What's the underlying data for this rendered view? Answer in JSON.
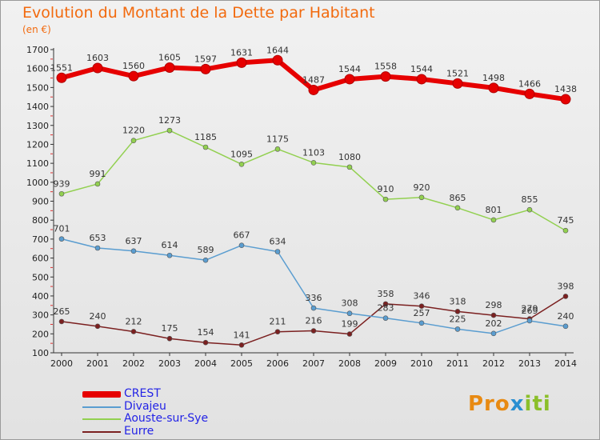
{
  "chart_data": {
    "type": "line",
    "title": "Evolution du Montant de la Dette par Habitant",
    "subtitle": "(en €)",
    "x": [
      "2000",
      "2001",
      "2002",
      "2003",
      "2004",
      "2005",
      "2006",
      "2007",
      "2008",
      "2009",
      "2010",
      "2011",
      "2012",
      "2013",
      "2014"
    ],
    "yticks": [
      100,
      200,
      300,
      400,
      500,
      600,
      700,
      800,
      900,
      1000,
      1100,
      1200,
      1300,
      1400,
      1500,
      1600,
      1700
    ],
    "ylim": [
      100,
      1700
    ],
    "grid": false,
    "legend_position": "bottom-left",
    "series": [
      {
        "name": "CREST",
        "color": "#e60000",
        "values": [
          1551,
          1603,
          1560,
          1605,
          1597,
          1631,
          1644,
          1487,
          1544,
          1558,
          1544,
          1521,
          1498,
          1466,
          1438
        ]
      },
      {
        "name": "Divajeu",
        "color": "#5a9dd0",
        "values": [
          701,
          653,
          637,
          614,
          589,
          667,
          634,
          336,
          308,
          283,
          257,
          225,
          202,
          269,
          240
        ]
      },
      {
        "name": "Aouste-sur-Sye",
        "color": "#92d050",
        "values": [
          939,
          991,
          1220,
          1273,
          1185,
          1095,
          1175,
          1103,
          1080,
          910,
          920,
          865,
          801,
          855,
          745
        ]
      },
      {
        "name": "Eurre",
        "color": "#7b2020",
        "values": [
          265,
          240,
          212,
          175,
          154,
          141,
          211,
          216,
          199,
          358,
          346,
          318,
          298,
          279,
          398
        ]
      }
    ]
  },
  "logo": {
    "part1": "Pro",
    "part2": "x",
    "part3": "iti"
  }
}
